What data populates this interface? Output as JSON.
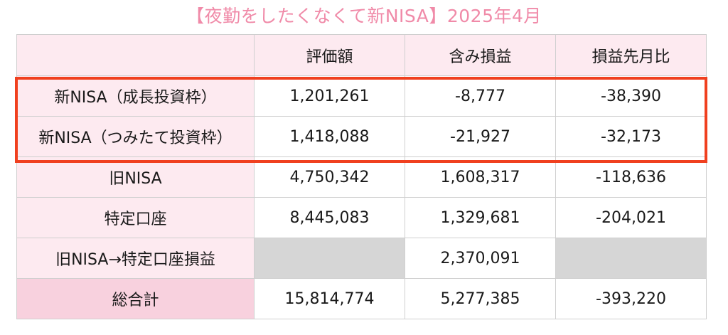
{
  "title": "【夜勤をしたくなくて新NISA】2025年4月",
  "headers": [
    "",
    "評価額",
    "含み損益",
    "損益先月比"
  ],
  "rows": [
    {
      "label": "新NISA（成長投資枠）",
      "valuation": "1,201,261",
      "unrealized": "-8,777",
      "mom": "-38,390"
    },
    {
      "label": "新NISA（つみたて投資枠）",
      "valuation": "1,418,088",
      "unrealized": "-21,927",
      "mom": "-32,173"
    },
    {
      "label": "旧NISA",
      "valuation": "4,750,342",
      "unrealized": "1,608,317",
      "mom": "-118,636"
    },
    {
      "label": "特定口座",
      "valuation": "8,445,083",
      "unrealized": "1,329,681",
      "mom": "-204,021"
    },
    {
      "label": "旧NISA→特定口座損益",
      "valuation": "",
      "unrealized": "2,370,091",
      "mom": ""
    },
    {
      "label": "総合計",
      "valuation": "15,814,774",
      "unrealized": "5,277,385",
      "mom": "-393,220"
    }
  ],
  "colors": {
    "title": "#f08aa8",
    "label_bg": "#fdeaf0",
    "total_bg": "#f8d1de",
    "empty_bg": "#d6d6d6",
    "highlight_border": "#f0401f"
  }
}
